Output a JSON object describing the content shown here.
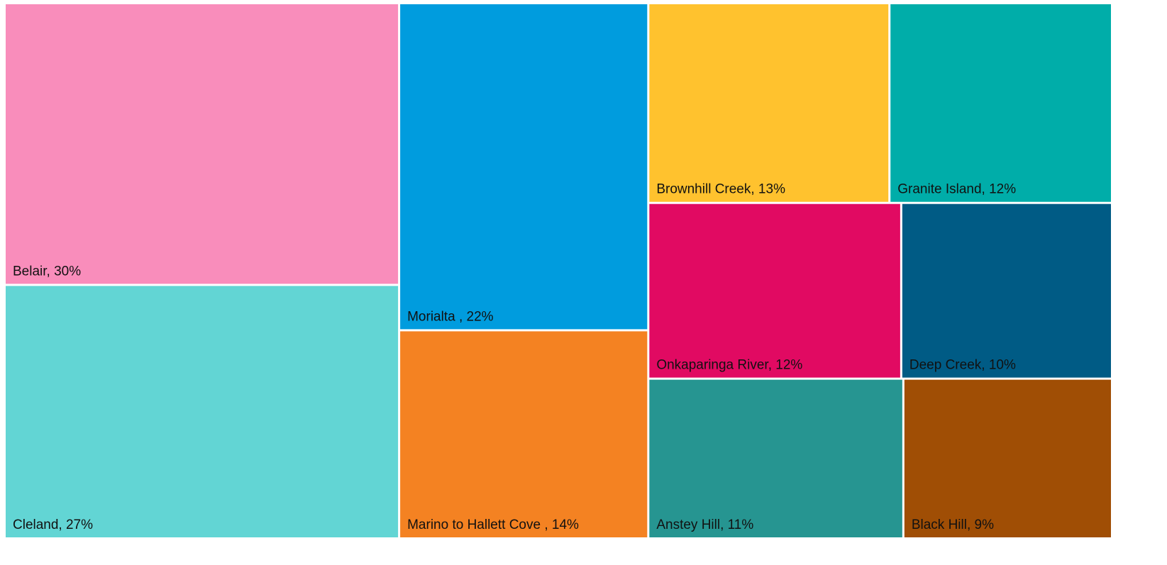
{
  "chart_data": {
    "type": "treemap",
    "values": [
      30,
      27,
      22,
      14,
      13,
      12,
      12,
      10,
      11,
      9
    ],
    "value_labels": [
      "Belair, 30%",
      "Cleland, 27%",
      "Morialta , 22%",
      "Marino to Hallett Cove , 14%",
      "Brownhill Creek, 13%",
      "Granite Island, 12%",
      "Onkaparinga River, 12%",
      "Deep Creek, 10%",
      "Anstey Hill, 11%",
      "Black Hill, 9%"
    ],
    "colors": [
      "#f98dbb",
      "#62d5d4",
      "#009cde",
      "#f48222",
      "#ffc22e",
      "#00ada9",
      "#e10a62",
      "#005b85",
      "#269591",
      "#a04e05"
    ]
  }
}
